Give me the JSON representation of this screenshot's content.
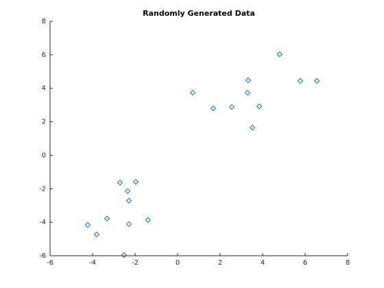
{
  "chart_data": {
    "type": "scatter",
    "title": "Randomly Generated Data",
    "x": [
      4.8,
      5.77,
      6.55,
      3.32,
      3.29,
      0.71,
      1.68,
      2.55,
      3.84,
      3.52,
      -2.71,
      -1.97,
      -2.35,
      -2.29,
      -3.32,
      -1.39,
      -2.29,
      -4.23,
      -3.81,
      -2.52
    ],
    "y": [
      6.03,
      4.44,
      4.44,
      4.48,
      3.74,
      3.74,
      2.8,
      2.88,
      2.92,
      1.65,
      -1.63,
      -1.59,
      -2.14,
      -2.71,
      -3.78,
      -3.86,
      -4.11,
      -4.16,
      -4.73,
      -5.96
    ],
    "color": "#0072bd",
    "marker": "diamond",
    "xlim": [
      -6,
      8
    ],
    "xticks": [
      -6,
      -4,
      -2,
      0,
      2,
      4,
      6,
      8
    ],
    "ylim": [
      -6,
      8
    ],
    "yticks": [
      -6,
      -4,
      -2,
      0,
      2,
      4,
      6,
      8
    ]
  }
}
